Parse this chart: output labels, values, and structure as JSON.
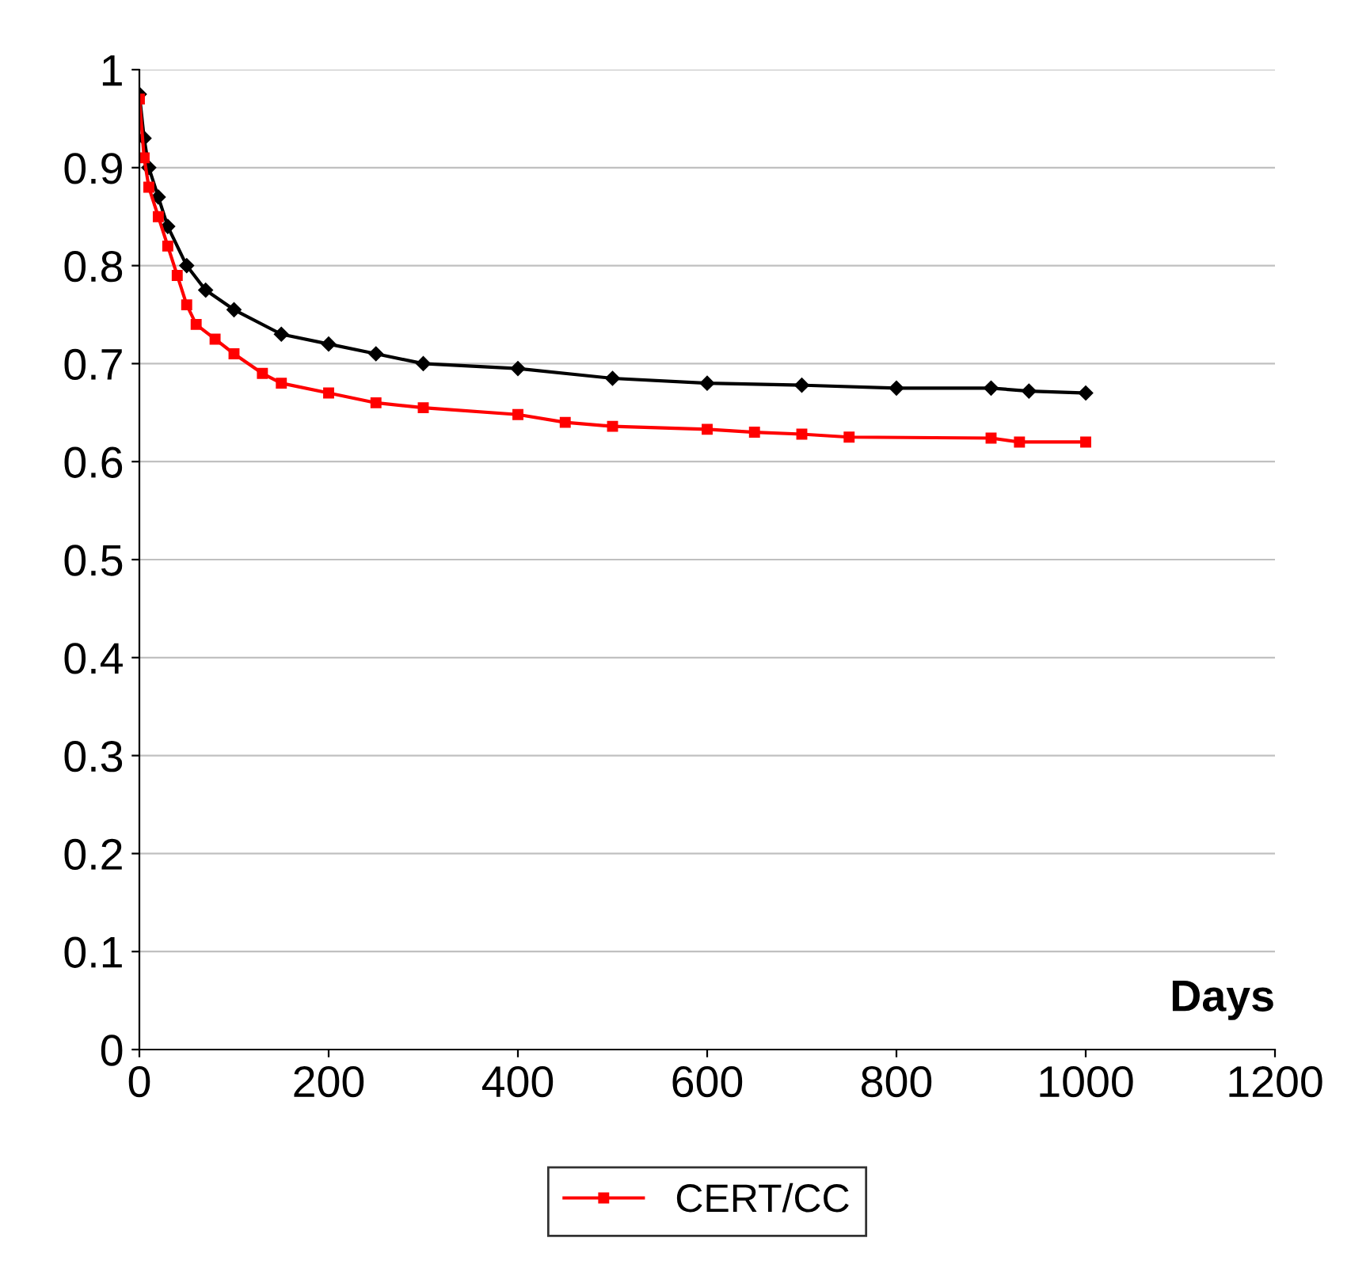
{
  "chart_data": {
    "type": "line",
    "xlabel": "Days",
    "xlim": [
      0,
      1200
    ],
    "xticks": [
      0,
      200,
      400,
      600,
      800,
      1000,
      1200
    ],
    "ylim": [
      0,
      1
    ],
    "yticks": [
      0,
      0.1,
      0.2,
      0.3,
      0.4,
      0.5,
      0.6,
      0.7,
      0.8,
      0.9,
      1
    ],
    "grid": "y",
    "legend": "bottom",
    "series": [
      {
        "color": "#000000",
        "marker": "diamond",
        "x": [
          0,
          5,
          10,
          20,
          30,
          50,
          70,
          100,
          150,
          200,
          250,
          300,
          400,
          500,
          600,
          700,
          800,
          900,
          940,
          1000
        ],
        "values": [
          0.975,
          0.93,
          0.9,
          0.87,
          0.84,
          0.8,
          0.775,
          0.755,
          0.73,
          0.72,
          0.71,
          0.7,
          0.695,
          0.685,
          0.68,
          0.678,
          0.675,
          0.675,
          0.672,
          0.67
        ]
      },
      {
        "name": "CERT/CC",
        "color": "#ff0000",
        "marker": "square",
        "x": [
          0,
          5,
          10,
          20,
          30,
          40,
          50,
          60,
          80,
          100,
          130,
          150,
          200,
          250,
          300,
          400,
          450,
          500,
          600,
          650,
          700,
          750,
          900,
          930,
          1000
        ],
        "values": [
          0.97,
          0.91,
          0.88,
          0.85,
          0.82,
          0.79,
          0.76,
          0.74,
          0.725,
          0.71,
          0.69,
          0.68,
          0.67,
          0.66,
          0.655,
          0.648,
          0.64,
          0.636,
          0.633,
          0.63,
          0.628,
          0.625,
          0.624,
          0.62,
          0.62
        ]
      }
    ]
  }
}
